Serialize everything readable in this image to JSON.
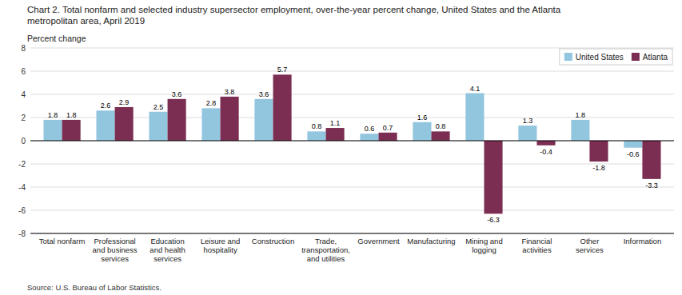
{
  "chart_data": {
    "type": "bar",
    "title": "Chart 2. Total nonfarm and selected industry supersector employment, over-the-year percent change, United States and the Atlanta\nmetropolitan area, April 2019",
    "ylabel": "Percent change",
    "annotations": [
      "Source: U.S. Bureau of Labor Statistics."
    ],
    "categories": [
      "Total nonfarm",
      "Professional\nand business\nservices",
      "Education\nand health\nservices",
      "Leisure and\nhospitality",
      "Construction",
      "Trade,\ntransportation,\nand utilities",
      "Government",
      "Manufacturing",
      "Mining and\nlogging",
      "Financial\nactivities",
      "Other\nservices",
      "Information"
    ],
    "series": [
      {
        "name": "United States",
        "color": "#92C5DE",
        "values": [
          1.8,
          2.6,
          2.5,
          2.8,
          3.6,
          0.8,
          0.6,
          1.6,
          4.1,
          1.3,
          1.8,
          -0.6
        ]
      },
      {
        "name": "Atlanta",
        "color": "#7B2D52",
        "values": [
          1.8,
          2.9,
          3.6,
          3.8,
          5.7,
          1.1,
          0.7,
          0.8,
          -6.3,
          -0.4,
          -1.8,
          -3.3
        ]
      }
    ],
    "ylim": [
      -8,
      8
    ],
    "yticks": [
      -8,
      -6,
      -4,
      -2,
      0,
      2,
      4,
      6,
      8
    ],
    "grid": true,
    "legend": "upper right",
    "data_labels": true
  }
}
